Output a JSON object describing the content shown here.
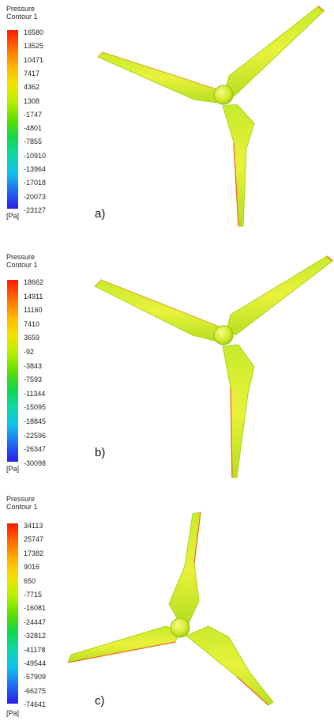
{
  "panels": [
    {
      "title_line1": "Pressure",
      "title_line2": "Contour 1",
      "ticks": [
        "16580",
        "13525",
        "10471",
        "7417",
        "4362",
        "1308",
        "-1747",
        "-4801",
        "-7855",
        "-10910",
        "-13964",
        "-17018",
        "-20073",
        "-23127"
      ],
      "unit": "[Pa]",
      "label": "a)"
    },
    {
      "title_line1": "Pressure",
      "title_line2": "Contour 1",
      "ticks": [
        "18662",
        "14911",
        "11160",
        "7410",
        "3659",
        "-92",
        "-3843",
        "-7593",
        "-11344",
        "-15095",
        "-18845",
        "-22596",
        "-26347",
        "-30098"
      ],
      "unit": "[Pa]",
      "label": "b)"
    },
    {
      "title_line1": "Pressure",
      "title_line2": "Contour 1",
      "ticks": [
        "34113",
        "25747",
        "17382",
        "9016",
        "650",
        "-7715",
        "-16081",
        "-24447",
        "-32812",
        "-41178",
        "-49544",
        "-57909",
        "-66275",
        "-74641"
      ],
      "unit": "[Pa]",
      "label": "c)"
    }
  ],
  "colors": {
    "blade": "#d9ee2c",
    "blade_edge": "#9ed41a",
    "leading_edge": "#f27a1c",
    "hub": "#e4f03a"
  }
}
